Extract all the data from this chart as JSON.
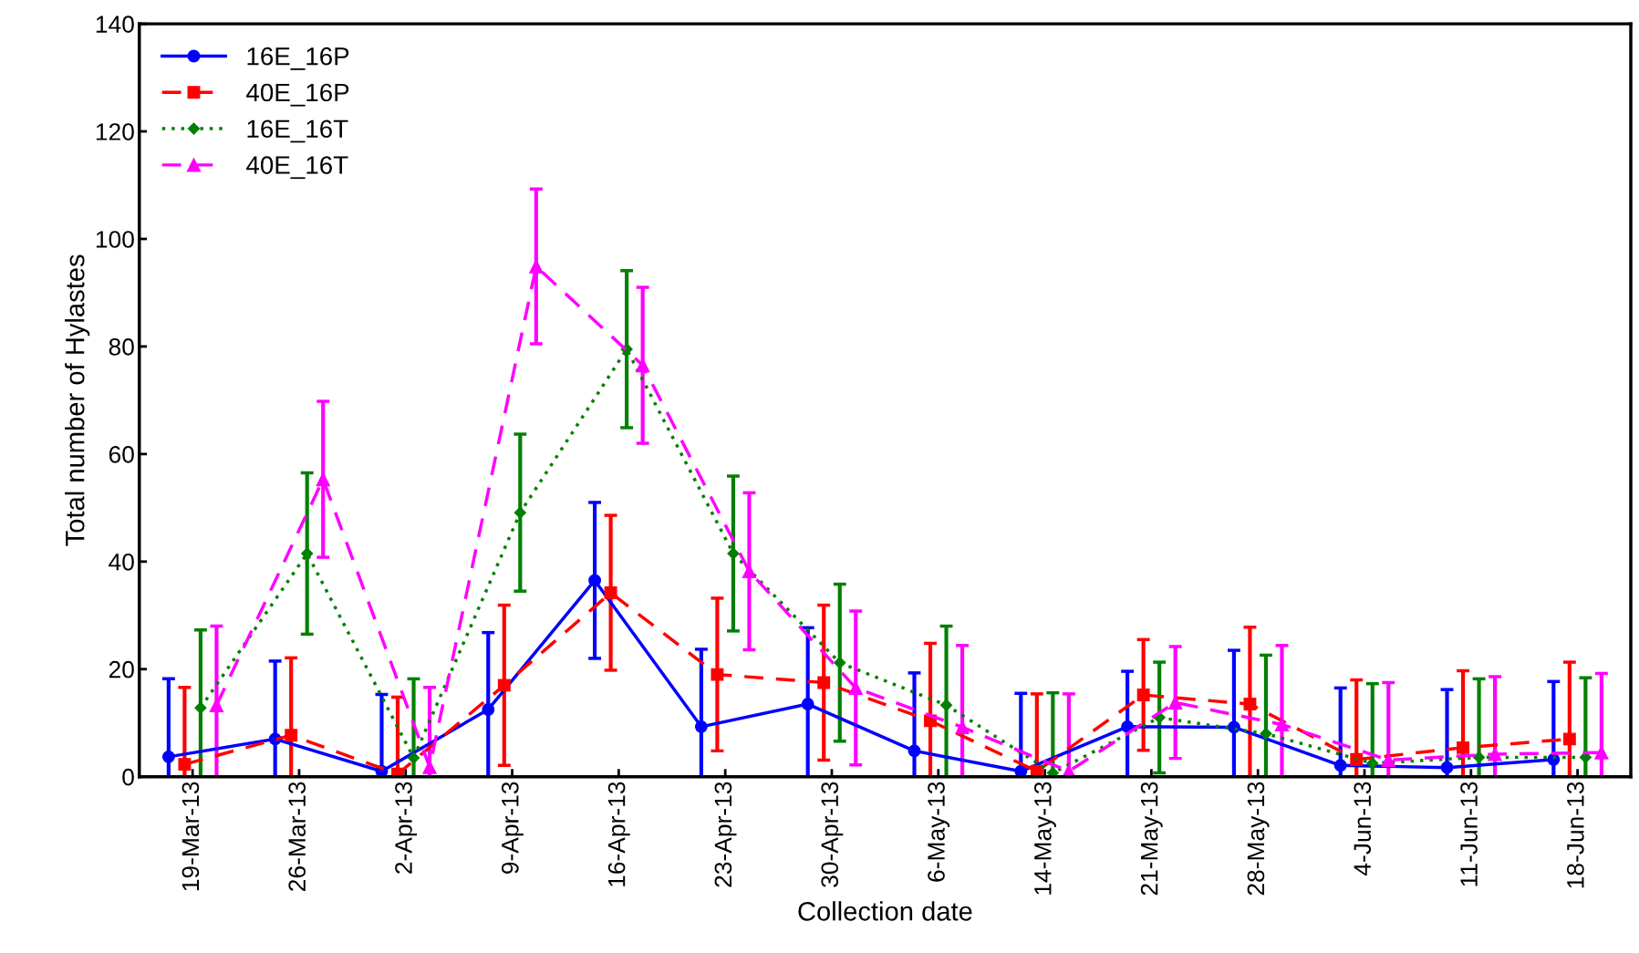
{
  "chart_data": {
    "type": "line",
    "xlabel": "Collection date",
    "ylabel": "Total number of Hylastes",
    "categories": [
      "19-Mar-13",
      "26-Mar-13",
      "2-Apr-13",
      "9-Apr-13",
      "16-Apr-13",
      "23-Apr-13",
      "30-Apr-13",
      "6-May-13",
      "14-May-13",
      "21-May-13",
      "28-May-13",
      "4-Jun-13",
      "11-Jun-13",
      "18-Jun-13"
    ],
    "ylim": [
      0,
      140
    ],
    "yticks": [
      0,
      20,
      40,
      60,
      80,
      100,
      120,
      140
    ],
    "grid": false,
    "legend": "top left",
    "series": [
      {
        "name": "16E_16P",
        "color": "#0000ff",
        "marker": "circle",
        "line_style": "solid",
        "values": [
          3.7,
          7.0,
          1.0,
          12.5,
          36.5,
          9.3,
          13.5,
          4.8,
          1.0,
          9.3,
          9.2,
          2.1,
          1.7,
          3.2
        ],
        "errors": [
          [
            0,
            18.2
          ],
          [
            0,
            21.5
          ],
          [
            0,
            15.3
          ],
          [
            0,
            26.8
          ],
          14.5,
          [
            0,
            23.7
          ],
          [
            0,
            27.7
          ],
          [
            0,
            19.3
          ],
          [
            0,
            15.5
          ],
          [
            0,
            19.6
          ],
          [
            0,
            23.5
          ],
          [
            0,
            16.5
          ],
          [
            0,
            16.2
          ],
          [
            0,
            17.7
          ]
        ]
      },
      {
        "name": "40E_16P",
        "color": "#ff0000",
        "marker": "square",
        "line_style": "dashed",
        "values": [
          2.3,
          7.7,
          0.5,
          17.0,
          34.2,
          19.0,
          17.5,
          10.4,
          1.0,
          15.2,
          13.5,
          3.2,
          5.4,
          7.0
        ],
        "errors": [
          [
            0,
            16.6
          ],
          [
            0,
            22.1
          ],
          [
            0,
            14.8
          ],
          14.9,
          14.4,
          14.2,
          14.4,
          [
            0,
            24.8
          ],
          [
            0,
            15.4
          ],
          10.3,
          [
            0,
            27.8
          ],
          [
            0,
            18.0
          ],
          [
            0,
            19.7
          ],
          [
            0,
            21.3
          ]
        ]
      },
      {
        "name": "16E_16T",
        "color": "#008000",
        "marker": "diamond",
        "line_style": "dotted",
        "values": [
          12.8,
          41.5,
          3.5,
          49.1,
          79.5,
          41.5,
          21.2,
          13.3,
          0.7,
          11.0,
          8.0,
          2.5,
          3.6,
          3.6
        ],
        "errors": [
          [
            0,
            27.3
          ],
          15.0,
          [
            0,
            18.2
          ],
          14.6,
          14.6,
          14.4,
          14.6,
          [
            0,
            28.0
          ],
          [
            0,
            15.6
          ],
          10.3,
          [
            0,
            22.6
          ],
          [
            0,
            17.3
          ],
          [
            0,
            18.2
          ],
          [
            0,
            18.4
          ]
        ]
      },
      {
        "name": "40E_16T",
        "color": "#ff00ff",
        "marker": "triangle",
        "line_style": "dashed",
        "values": [
          13.3,
          55.3,
          1.8,
          94.9,
          76.5,
          38.2,
          16.5,
          9.2,
          1.0,
          13.8,
          9.7,
          3.1,
          4.2,
          4.5
        ],
        "errors": [
          [
            0,
            28.0
          ],
          14.5,
          [
            0,
            16.6
          ],
          14.4,
          14.5,
          14.6,
          14.3,
          [
            0,
            24.4
          ],
          [
            0,
            15.4
          ],
          10.4,
          [
            0,
            24.4
          ],
          [
            0,
            17.5
          ],
          [
            0,
            18.6
          ],
          [
            0,
            19.2
          ]
        ]
      }
    ]
  }
}
